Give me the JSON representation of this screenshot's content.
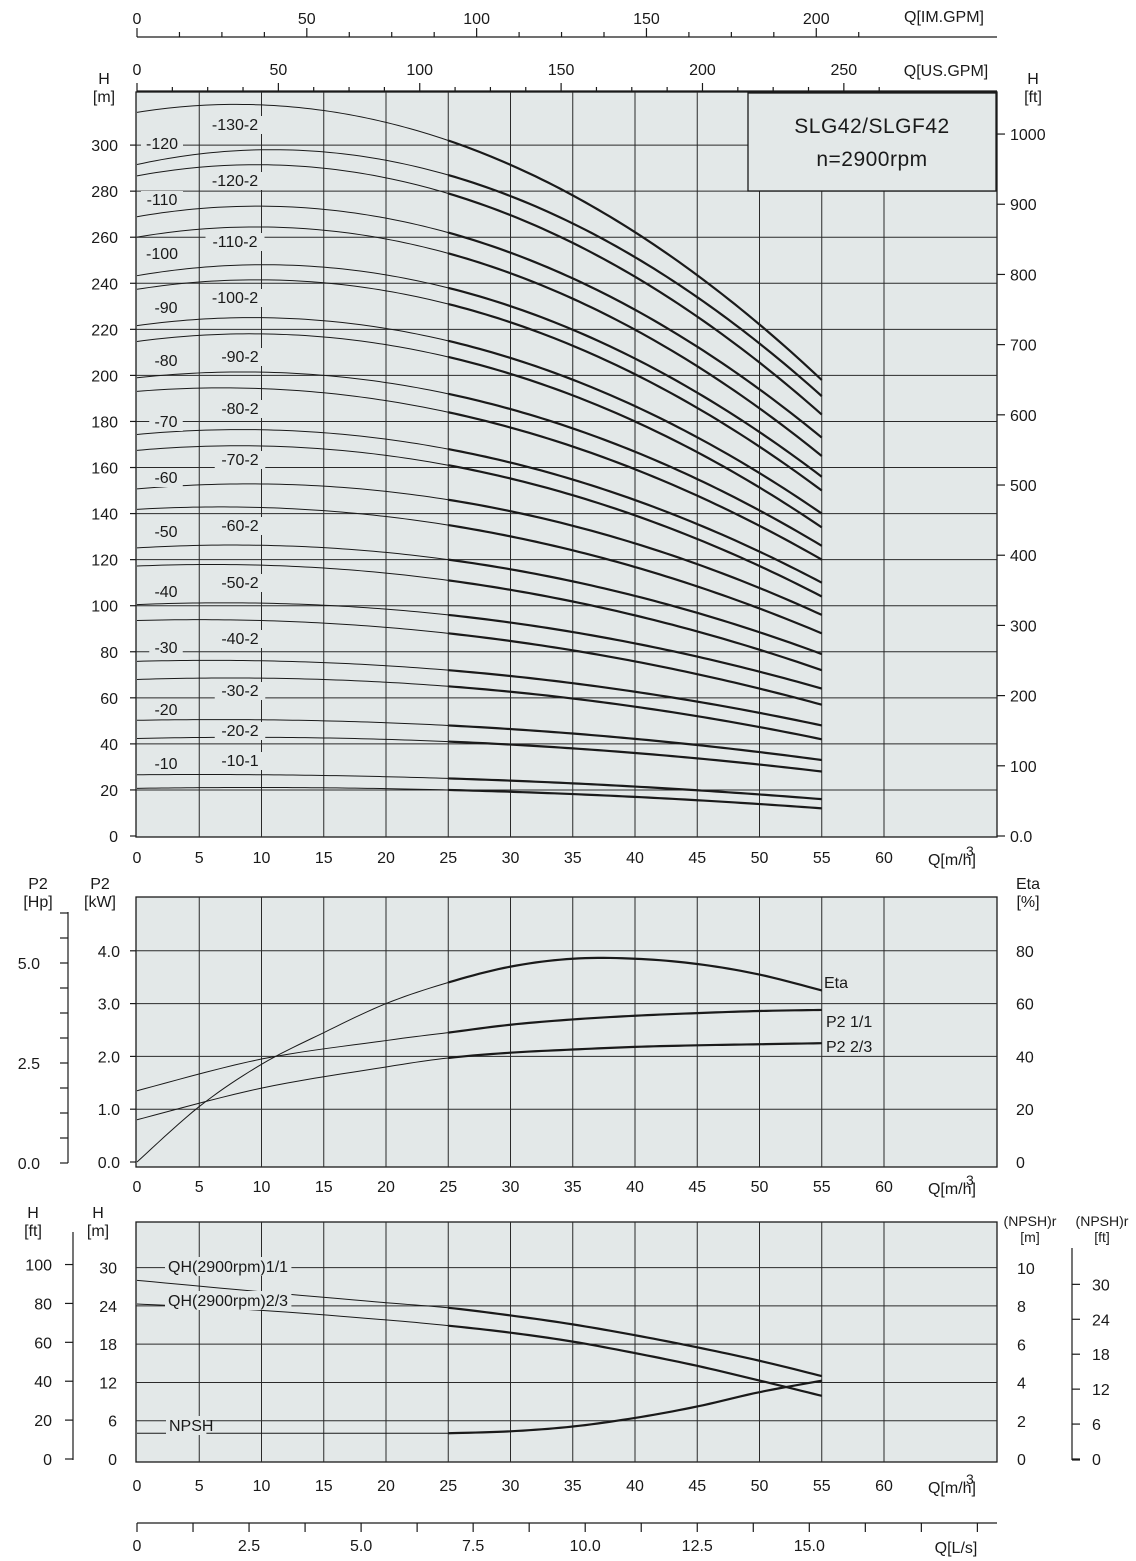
{
  "model_box": {
    "model": "SLG42/SLGF42",
    "speed": "n=2900rpm"
  },
  "top_axes": {
    "im_gpm": {
      "label": "Q[IM.GPM]",
      "ticks": [
        "0",
        "50",
        "100",
        "150",
        "200"
      ],
      "values": [
        0,
        50,
        100,
        150,
        200
      ]
    },
    "us_gpm": {
      "label": "Q[US.GPM]",
      "ticks": [
        "0",
        "50",
        "100",
        "150",
        "200",
        "250"
      ],
      "values": [
        0,
        50,
        100,
        150,
        200,
        250
      ]
    }
  },
  "chart_data": [
    {
      "type": "line",
      "panel": "head",
      "xlabel": "Q[m³/h]",
      "ylabel_left": "H\n[m]",
      "ylabel_right": "H\n[ft]",
      "xlim": [
        0,
        69
      ],
      "ylim": [
        0,
        324
      ],
      "x_ticks": [
        "0",
        "5",
        "10",
        "15",
        "20",
        "25",
        "30",
        "35",
        "40",
        "45",
        "50",
        "55",
        "60"
      ],
      "y_ticks_left": [
        "0",
        "20",
        "40",
        "60",
        "80",
        "100",
        "120",
        "140",
        "160",
        "180",
        "200",
        "220",
        "240",
        "260",
        "280",
        "300"
      ],
      "y_ticks_right": [
        "0.0",
        "100",
        "200",
        "300",
        "400",
        "500",
        "600",
        "700",
        "800",
        "900",
        "1000"
      ],
      "grid": true,
      "series": [
        {
          "name": "-130-2",
          "shutoff": 319,
          "at25": 302,
          "at55": 198
        },
        {
          "name": "-120",
          "shutoff": 296,
          "at25": 287,
          "at55": 191
        },
        {
          "name": "-120-2",
          "shutoff": 291,
          "at25": 279,
          "at55": 183
        },
        {
          "name": "-110",
          "shutoff": 273,
          "at25": 262,
          "at55": 173
        },
        {
          "name": "-110-2",
          "shutoff": 264,
          "at25": 253,
          "at55": 165
        },
        {
          "name": "-100",
          "shutoff": 247,
          "at25": 238,
          "at55": 156
        },
        {
          "name": "-100-2",
          "shutoff": 241,
          "at25": 231,
          "at55": 150
        },
        {
          "name": "-90",
          "shutoff": 225,
          "at25": 215,
          "at55": 140
        },
        {
          "name": "-90-2",
          "shutoff": 218,
          "at25": 208,
          "at55": 134
        },
        {
          "name": "-80",
          "shutoff": 202,
          "at25": 192,
          "at55": 126
        },
        {
          "name": "-80-2",
          "shutoff": 196,
          "at25": 184,
          "at55": 120
        },
        {
          "name": "-70",
          "shutoff": 177,
          "at25": 168,
          "at55": 110
        },
        {
          "name": "-70-2",
          "shutoff": 170,
          "at25": 161,
          "at55": 104
        },
        {
          "name": "-60",
          "shutoff": 153,
          "at25": 146,
          "at55": 96
        },
        {
          "name": "-60-2",
          "shutoff": 144,
          "at25": 135,
          "at55": 88
        },
        {
          "name": "-50",
          "shutoff": 127,
          "at25": 120,
          "at55": 79
        },
        {
          "name": "-50-2",
          "shutoff": 119,
          "at25": 111,
          "at55": 72
        },
        {
          "name": "-40",
          "shutoff": 102,
          "at25": 96,
          "at55": 64
        },
        {
          "name": "-40-2",
          "shutoff": 95,
          "at25": 88,
          "at55": 57
        },
        {
          "name": "-30",
          "shutoff": 77,
          "at25": 72,
          "at55": 48
        },
        {
          "name": "-30-2",
          "shutoff": 69,
          "at25": 65,
          "at55": 42
        },
        {
          "name": "-20",
          "shutoff": 51,
          "at25": 48,
          "at55": 33
        },
        {
          "name": "-20-2",
          "shutoff": 43,
          "at25": 41,
          "at55": 28
        },
        {
          "name": "-10",
          "shutoff": 27,
          "at25": 25,
          "at55": 16
        },
        {
          "name": "-10-1",
          "shutoff": 21,
          "at25": 20,
          "at55": 12
        }
      ]
    },
    {
      "type": "line",
      "panel": "power-efficiency",
      "xlabel": "Q[m³/h]",
      "ylabel_left_hp": "P2\n[Hp]",
      "ylabel_left_kw": "P2\n[kW]",
      "ylabel_right": "Eta\n[%]",
      "xlim": [
        0,
        69
      ],
      "ylim_kw": [
        0,
        4.4
      ],
      "x_ticks": [
        "0",
        "5",
        "10",
        "15",
        "20",
        "25",
        "30",
        "35",
        "40",
        "45",
        "50",
        "55",
        "60"
      ],
      "hp_ticks": [
        "0.0",
        "2.5",
        "5.0"
      ],
      "kw_ticks": [
        "0.0",
        "1.0",
        "2.0",
        "3.0",
        "4.0"
      ],
      "eta_ticks": [
        "0",
        "20",
        "40",
        "60",
        "80"
      ],
      "grid": true,
      "series": [
        {
          "name": "Eta",
          "unit": "%",
          "x": [
            0,
            5,
            10,
            15,
            20,
            25,
            30,
            35,
            40,
            45,
            50,
            55
          ],
          "y": [
            0,
            21,
            37,
            49,
            60,
            68,
            74,
            77,
            77,
            75,
            71,
            65
          ]
        },
        {
          "name": "P2 1/1",
          "unit": "kW",
          "x": [
            0,
            10,
            20,
            25,
            30,
            35,
            40,
            45,
            50,
            55
          ],
          "y": [
            1.35,
            1.95,
            2.3,
            2.45,
            2.6,
            2.7,
            2.77,
            2.82,
            2.86,
            2.88
          ]
        },
        {
          "name": "P2 2/3",
          "unit": "kW",
          "x": [
            0,
            10,
            20,
            25,
            30,
            35,
            40,
            45,
            50,
            55
          ],
          "y": [
            0.8,
            1.4,
            1.8,
            1.97,
            2.07,
            2.13,
            2.18,
            2.21,
            2.23,
            2.25
          ]
        }
      ]
    },
    {
      "type": "line",
      "panel": "npsh",
      "xlabel": "Q[m³/h]",
      "ylabel_left_ft": "H\n[ft]",
      "ylabel_left_m": "H\n[m]",
      "ylabel_right_m": "(NPSH)r\n[m]",
      "ylabel_right_ft": "(NPSH)r\n[ft]",
      "xlim": [
        0,
        69
      ],
      "ylim_m": [
        0,
        33
      ],
      "x_ticks": [
        "0",
        "5",
        "10",
        "15",
        "20",
        "25",
        "30",
        "35",
        "40",
        "45",
        "50",
        "55",
        "60"
      ],
      "h_ft_ticks": [
        "0",
        "20",
        "40",
        "60",
        "80",
        "100"
      ],
      "h_m_ticks": [
        "0",
        "6",
        "12",
        "18",
        "24",
        "30"
      ],
      "npsh_m_ticks": [
        "0",
        "2",
        "4",
        "6",
        "8",
        "10"
      ],
      "npsh_ft_ticks": [
        "0",
        "6",
        "12",
        "18",
        "24",
        "30"
      ],
      "grid": true,
      "series": [
        {
          "name": "QH(2900rpm)1/1",
          "unit": "m",
          "x": [
            0,
            10,
            20,
            25,
            30,
            35,
            40,
            45,
            50,
            55
          ],
          "y": [
            28,
            26.2,
            24.5,
            23.7,
            22.5,
            21.1,
            19.4,
            17.5,
            15.4,
            13
          ]
        },
        {
          "name": "QH(2900rpm)2/3",
          "unit": "m",
          "x": [
            0,
            10,
            20,
            25,
            30,
            35,
            40,
            45,
            50,
            55
          ],
          "y": [
            24.3,
            23.3,
            21.8,
            20.9,
            19.8,
            18.4,
            16.6,
            14.6,
            12.3,
            9.9
          ]
        },
        {
          "name": "NPSH",
          "unit": "m",
          "x": [
            25,
            30,
            35,
            40,
            45,
            50,
            55
          ],
          "y": [
            1.35,
            1.45,
            1.7,
            2.15,
            2.75,
            3.5,
            4.1
          ]
        }
      ]
    }
  ],
  "bottom_axis": {
    "label": "Q[L/s]",
    "ticks": [
      "0",
      "2.5",
      "5.0",
      "7.5",
      "10.0",
      "12.5",
      "15.0"
    ],
    "values": [
      0,
      2.5,
      5,
      7.5,
      10,
      12.5,
      15
    ]
  }
}
